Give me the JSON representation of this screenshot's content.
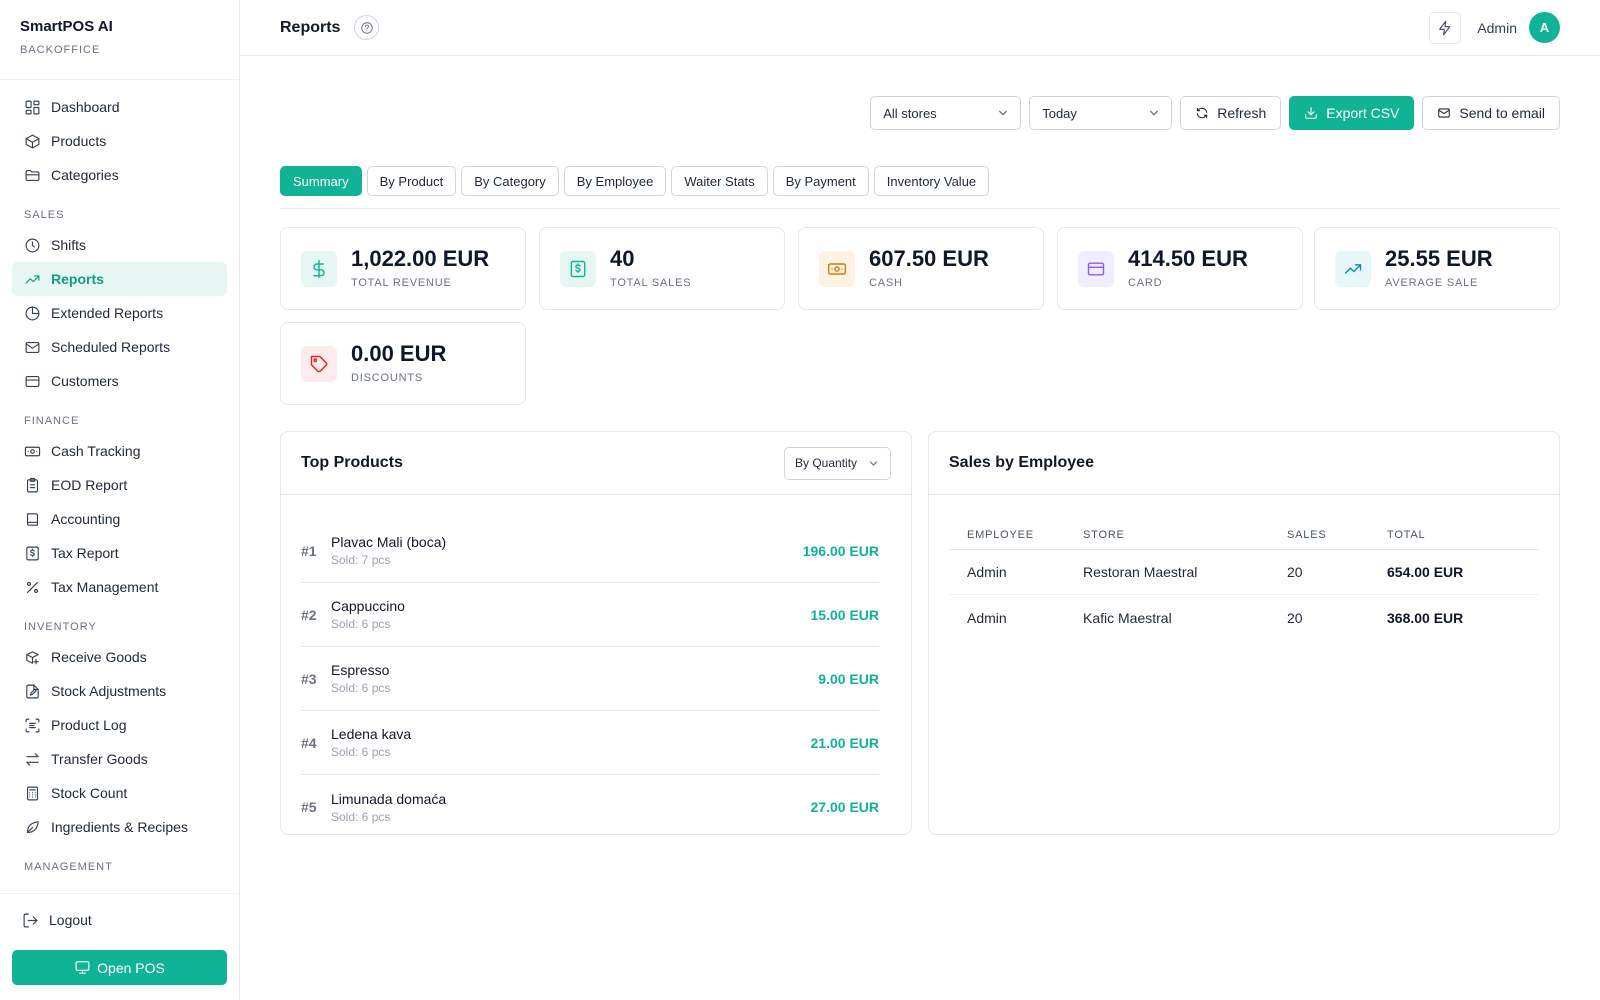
{
  "brand": {
    "title": "SmartPOS AI",
    "subtitle": "BACKOFFICE"
  },
  "sidebar": {
    "items_top": [
      {
        "label": "Dashboard",
        "icon": "dashboard-icon"
      },
      {
        "label": "Products",
        "icon": "box-icon"
      },
      {
        "label": "Categories",
        "icon": "folder-icon"
      }
    ],
    "sales_section": "SALES",
    "sales_items": [
      {
        "label": "Shifts",
        "icon": "clock-icon"
      },
      {
        "label": "Reports",
        "icon": "trending-icon",
        "active": true
      },
      {
        "label": "Extended Reports",
        "icon": "pie-icon"
      },
      {
        "label": "Scheduled Reports",
        "icon": "mail-icon"
      },
      {
        "label": "Customers",
        "icon": "card-icon"
      }
    ],
    "finance_section": "FINANCE",
    "finance_items": [
      {
        "label": "Cash Tracking",
        "icon": "banknote-icon"
      },
      {
        "label": "EOD Report",
        "icon": "clipboard-icon"
      },
      {
        "label": "Accounting",
        "icon": "book-icon"
      },
      {
        "label": "Tax Report",
        "icon": "receipt-icon"
      },
      {
        "label": "Tax Management",
        "icon": "percent-icon"
      }
    ],
    "inventory_section": "INVENTORY",
    "inventory_items": [
      {
        "label": "Receive Goods",
        "icon": "package-plus-icon"
      },
      {
        "label": "Stock Adjustments",
        "icon": "file-edit-icon"
      },
      {
        "label": "Product Log",
        "icon": "scan-text-icon"
      },
      {
        "label": "Transfer Goods",
        "icon": "arrows-icon"
      },
      {
        "label": "Stock Count",
        "icon": "calculator-icon"
      },
      {
        "label": "Ingredients & Recipes",
        "icon": "leaf-icon"
      }
    ],
    "management_section": "MANAGEMENT",
    "logout": "Logout",
    "open_pos": "Open POS"
  },
  "header": {
    "title": "Reports",
    "user": "Admin",
    "avatar_initial": "A"
  },
  "toolbar": {
    "store_select": "All stores",
    "period_select": "Today",
    "refresh": "Refresh",
    "export": "Export CSV",
    "email": "Send to email"
  },
  "tabs": [
    "Summary",
    "By Product",
    "By Category",
    "By Employee",
    "Waiter Stats",
    "By Payment",
    "Inventory Value"
  ],
  "stats": [
    {
      "value": "1,022.00 EUR",
      "label": "TOTAL REVENUE",
      "icon": "dollar-icon",
      "color": "#10b395",
      "bg": "#e6f7f3"
    },
    {
      "value": "40",
      "label": "TOTAL SALES",
      "icon": "receipt-icon",
      "color": "#10b395",
      "bg": "#e6f7f3"
    },
    {
      "value": "607.50 EUR",
      "label": "CASH",
      "icon": "banknote-icon",
      "color": "#d97706",
      "bg": "#fef3e2"
    },
    {
      "value": "414.50 EUR",
      "label": "CARD",
      "icon": "card-icon",
      "color": "#8b5cf6",
      "bg": "#f1ecfe"
    },
    {
      "value": "25.55 EUR",
      "label": "AVERAGE SALE",
      "icon": "trending-icon",
      "color": "#0891b2",
      "bg": "#e6f6fa"
    },
    {
      "value": "0.00 EUR",
      "label": "DISCOUNTS",
      "icon": "tag-icon",
      "color": "#dc2626",
      "bg": "#fdeaea"
    }
  ],
  "top_products": {
    "title": "Top Products",
    "sort": "By Quantity",
    "items": [
      {
        "rank": "#1",
        "name": "Plavac Mali (boca)",
        "sold": "Sold: 7 pcs",
        "total": "196.00 EUR"
      },
      {
        "rank": "#2",
        "name": "Cappuccino",
        "sold": "Sold: 6 pcs",
        "total": "15.00 EUR"
      },
      {
        "rank": "#3",
        "name": "Espresso",
        "sold": "Sold: 6 pcs",
        "total": "9.00 EUR"
      },
      {
        "rank": "#4",
        "name": "Ledena kava",
        "sold": "Sold: 6 pcs",
        "total": "21.00 EUR"
      },
      {
        "rank": "#5",
        "name": "Limunada domaća",
        "sold": "Sold: 6 pcs",
        "total": "27.00 EUR"
      }
    ]
  },
  "sales_by_employee": {
    "title": "Sales by Employee",
    "columns": [
      "EMPLOYEE",
      "STORE",
      "SALES",
      "TOTAL"
    ],
    "rows": [
      {
        "employee": "Admin",
        "store": "Restoran Maestral",
        "sales": "20",
        "total": "654.00 EUR"
      },
      {
        "employee": "Admin",
        "store": "Kafic Maestral",
        "sales": "20",
        "total": "368.00 EUR"
      }
    ]
  }
}
